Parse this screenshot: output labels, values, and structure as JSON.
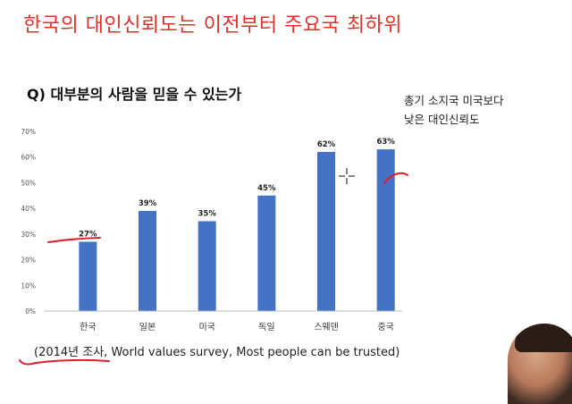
{
  "slide": {
    "title": "한국의 대인신뢰도는 이전부터 주요국 최하위",
    "question": "Q) 대부분의 사람을 믿을 수 있는가",
    "side_note_line1": "총기 소지국 미국보다",
    "side_note_line2": "낮은 대인신뢰도",
    "source_year": "(2014년 조사",
    "source_rest": ", World values survey, Most people can be trusted)"
  },
  "colors": {
    "title": "#e0302a",
    "bar": "#4472c4",
    "annotation": "#e01e2a"
  },
  "icons": {
    "cursor": "crosshair-cursor-icon"
  },
  "chart_data": {
    "type": "bar",
    "categories": [
      "한국",
      "일본",
      "미국",
      "독일",
      "스웨덴",
      "중국"
    ],
    "values": [
      27,
      39,
      35,
      45,
      62,
      63
    ],
    "data_labels": [
      "27%",
      "39%",
      "35%",
      "45%",
      "62%",
      "63%"
    ],
    "yticks": [
      "0%",
      "10%",
      "20%",
      "30%",
      "40%",
      "50%",
      "60%",
      "70%"
    ],
    "ylim": [
      0,
      70
    ],
    "grid": false,
    "legend": "none"
  }
}
